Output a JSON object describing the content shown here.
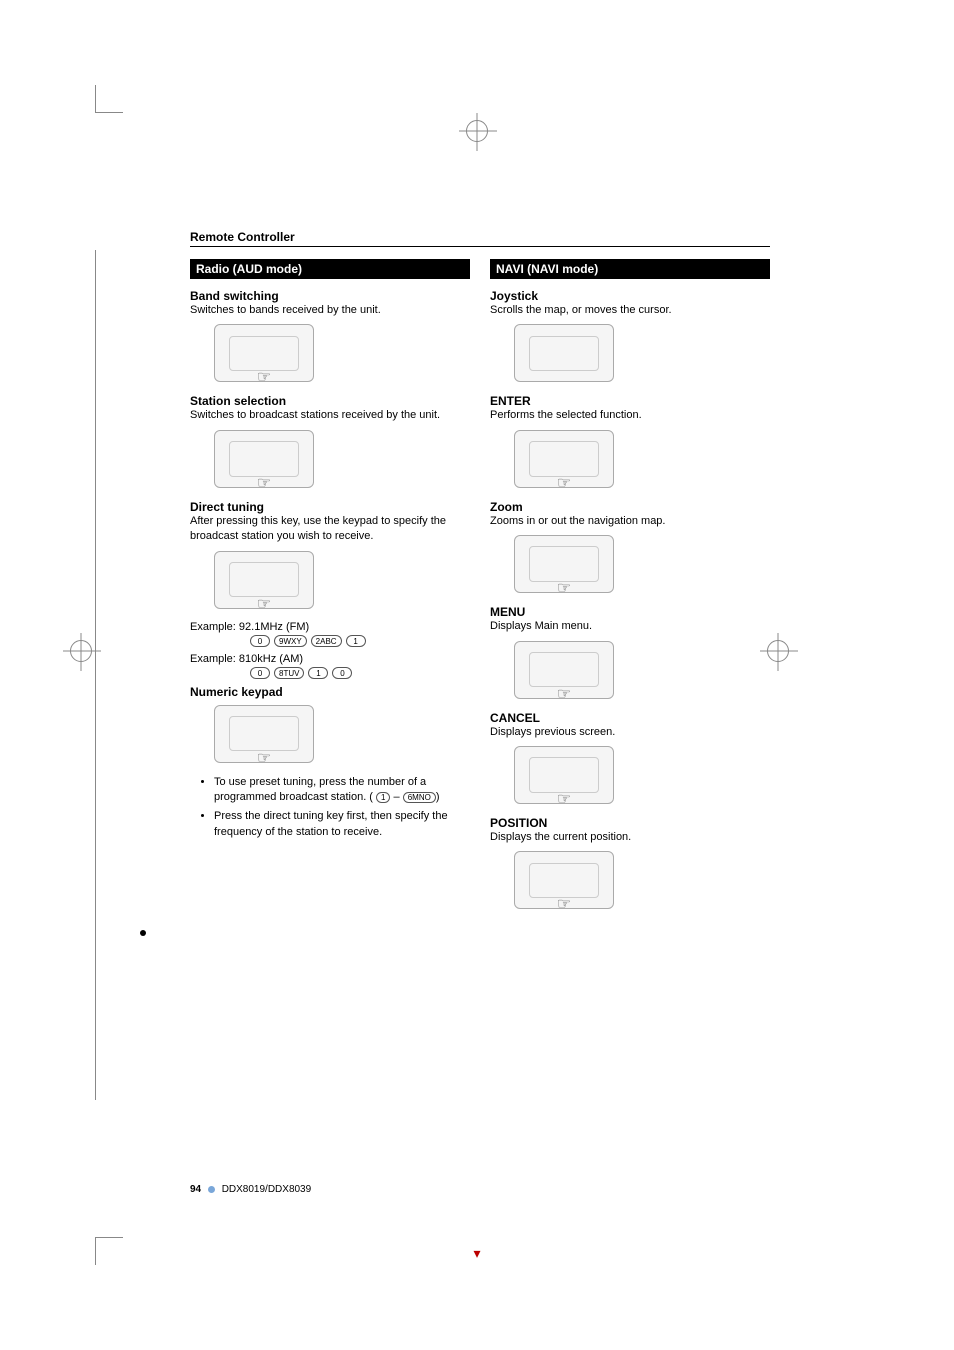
{
  "header": "Remote Controller",
  "left": {
    "bar": "Radio (AUD mode)",
    "band": {
      "head": "Band switching",
      "body": "Switches to bands received by the unit."
    },
    "station": {
      "head": "Station selection",
      "body": "Switches to broadcast stations received by the unit."
    },
    "direct": {
      "head": "Direct tuning",
      "body": "After pressing this key, use the keypad to specify the broadcast station you wish to receive.",
      "ex1_label": "Example: 92.1MHz (FM)",
      "ex1_keys": [
        "0",
        "9WXY",
        "2ABC",
        "1"
      ],
      "ex2_label": "Example: 810kHz (AM)",
      "ex2_keys": [
        "0",
        "8TUV",
        "1",
        "0"
      ]
    },
    "keypad": {
      "head": "Numeric keypad",
      "bullets": [
        "To use preset tuning, press the number of a programmed broadcast station. (",
        "Press the direct tuning key first, then specify the frequency of the station to receive."
      ],
      "range_from": "1",
      "range_to": "6MNO",
      "range_sep": " – ",
      "range_close": ")"
    }
  },
  "right": {
    "bar": "NAVI (NAVI mode)",
    "joystick": {
      "head": "Joystick",
      "body": "Scrolls the map, or moves the cursor."
    },
    "enter": {
      "head": "ENTER",
      "body": "Performs the selected function."
    },
    "zoom": {
      "head": "Zoom",
      "body": "Zooms in or out the navigation map."
    },
    "menu": {
      "head": "MENU",
      "body": "Displays Main menu."
    },
    "cancel": {
      "head": "CANCEL",
      "body": "Displays previous screen."
    },
    "position": {
      "head": "POSITION",
      "body": "Displays the current position."
    }
  },
  "footer": {
    "page": "94",
    "model": "DDX8019/DDX8039"
  }
}
